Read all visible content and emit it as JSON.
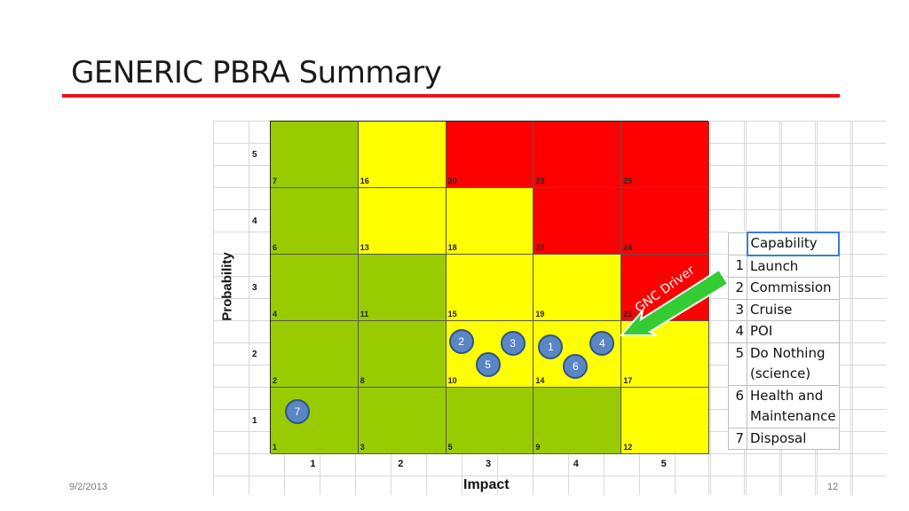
{
  "slide": {
    "title": "GENERIC PBRA Summary",
    "date": "9/2/2013",
    "page_number": "12"
  },
  "matrix": {
    "y_axis_label": "Probability",
    "x_axis_label": "Impact",
    "row_labels": [
      "5",
      "4",
      "3",
      "2",
      "1"
    ],
    "col_labels": [
      "1",
      "2",
      "3",
      "4",
      "5"
    ],
    "colors": {
      "green": "#99cc00",
      "yellow": "#ffff00",
      "red": "#ff0000"
    },
    "rows": [
      {
        "nums": [
          "7",
          "16",
          "20",
          "23",
          "25"
        ],
        "colors": [
          "green",
          "yellow",
          "red",
          "red",
          "red"
        ]
      },
      {
        "nums": [
          "6",
          "13",
          "18",
          "22",
          "24"
        ],
        "colors": [
          "green",
          "yellow",
          "yellow",
          "red",
          "red"
        ]
      },
      {
        "nums": [
          "4",
          "11",
          "15",
          "19",
          "21"
        ],
        "colors": [
          "green",
          "green",
          "yellow",
          "yellow",
          "red"
        ]
      },
      {
        "nums": [
          "2",
          "8",
          "10",
          "14",
          "17"
        ],
        "colors": [
          "green",
          "green",
          "yellow",
          "yellow",
          "yellow"
        ]
      },
      {
        "nums": [
          "1",
          "3",
          "5",
          "9",
          "12"
        ],
        "colors": [
          "green",
          "green",
          "green",
          "green",
          "yellow"
        ]
      }
    ]
  },
  "markers": [
    {
      "label": "1",
      "capability": "Launch",
      "probability": 2,
      "impact": 4
    },
    {
      "label": "2",
      "capability": "Commission",
      "probability": 2,
      "impact": 3
    },
    {
      "label": "3",
      "capability": "Cruise",
      "probability": 2,
      "impact": 3
    },
    {
      "label": "4",
      "capability": "POI",
      "probability": 2,
      "impact": 4
    },
    {
      "label": "5",
      "capability": "Do Nothing (science)",
      "probability": 2,
      "impact": 3
    },
    {
      "label": "6",
      "capability": "Health and Maintenance",
      "probability": 2,
      "impact": 4
    },
    {
      "label": "7",
      "capability": "Disposal",
      "probability": 1,
      "impact": 1
    }
  ],
  "annotation": {
    "text": "GNC Driver",
    "color": "#33cc33"
  },
  "legend": {
    "header": "Capability",
    "rows": [
      {
        "num": "1",
        "lines": [
          "Launch"
        ]
      },
      {
        "num": "2",
        "lines": [
          "Commission"
        ]
      },
      {
        "num": "3",
        "lines": [
          "Cruise"
        ]
      },
      {
        "num": "4",
        "lines": [
          "POI"
        ]
      },
      {
        "num": "5",
        "lines": [
          "Do Nothing",
          "(science)"
        ]
      },
      {
        "num": "6",
        "lines": [
          "Health and",
          "Maintenance"
        ]
      },
      {
        "num": "7",
        "lines": [
          "Disposal"
        ]
      }
    ]
  }
}
